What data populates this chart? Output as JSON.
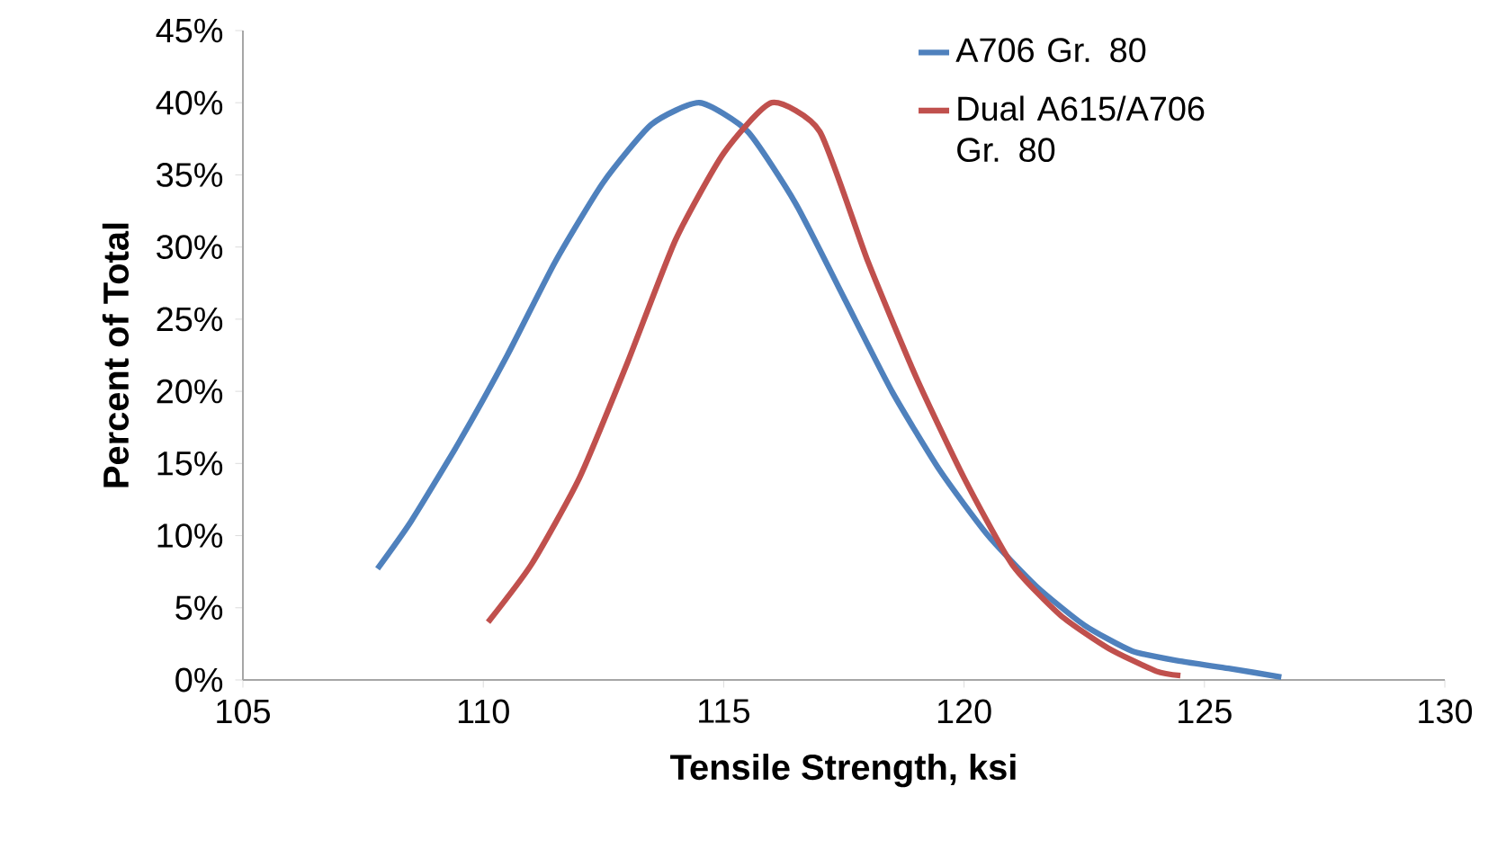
{
  "chart_data": {
    "type": "line",
    "xlabel": "Tensile Strength, ksi",
    "ylabel": "Percent of Total",
    "xlim": [
      105,
      130
    ],
    "xticks": [
      105,
      110,
      115,
      120,
      125,
      130
    ],
    "ylim": [
      0,
      45
    ],
    "yticks": [
      {
        "value": 0,
        "label": "0%"
      },
      {
        "value": 5,
        "label": "5%"
      },
      {
        "value": 10,
        "label": "10%"
      },
      {
        "value": 15,
        "label": "15%"
      },
      {
        "value": 20,
        "label": "20%"
      },
      {
        "value": 25,
        "label": "25%"
      },
      {
        "value": 30,
        "label": "30%"
      },
      {
        "value": 35,
        "label": "35%"
      },
      {
        "value": 40,
        "label": "40%"
      },
      {
        "value": 45,
        "label": "45%"
      }
    ],
    "grid": false,
    "legend": "top right",
    "marker": "none",
    "line_style": "solid",
    "series": [
      {
        "name": "A706 Gr. 80",
        "color": "#4f81bd",
        "x": [
          107.8,
          108.5,
          109.5,
          110.5,
          111.5,
          112.5,
          113.5,
          114.5,
          115.5,
          116.5,
          117.5,
          118.5,
          119.5,
          120.5,
          121.5,
          122.5,
          123.5,
          124.5,
          125.5,
          126.6
        ],
        "values": [
          7.7,
          11,
          16.5,
          22.5,
          29,
          34.5,
          38.5,
          40,
          38,
          33,
          26.5,
          20,
          14.5,
          10,
          6.5,
          3.8,
          2,
          1.3,
          0.8,
          0.2
        ]
      },
      {
        "name": "Dual A615/A706 Gr. 80",
        "color": "#c0504d",
        "x": [
          110.1,
          111,
          112,
          113,
          114,
          115,
          116,
          117,
          118,
          119,
          120,
          121,
          122,
          123,
          124,
          124.5
        ],
        "values": [
          4,
          8,
          14,
          22,
          30.5,
          36.5,
          40,
          38,
          29,
          21,
          14,
          8,
          4.5,
          2.2,
          0.6,
          0.3
        ]
      }
    ]
  }
}
